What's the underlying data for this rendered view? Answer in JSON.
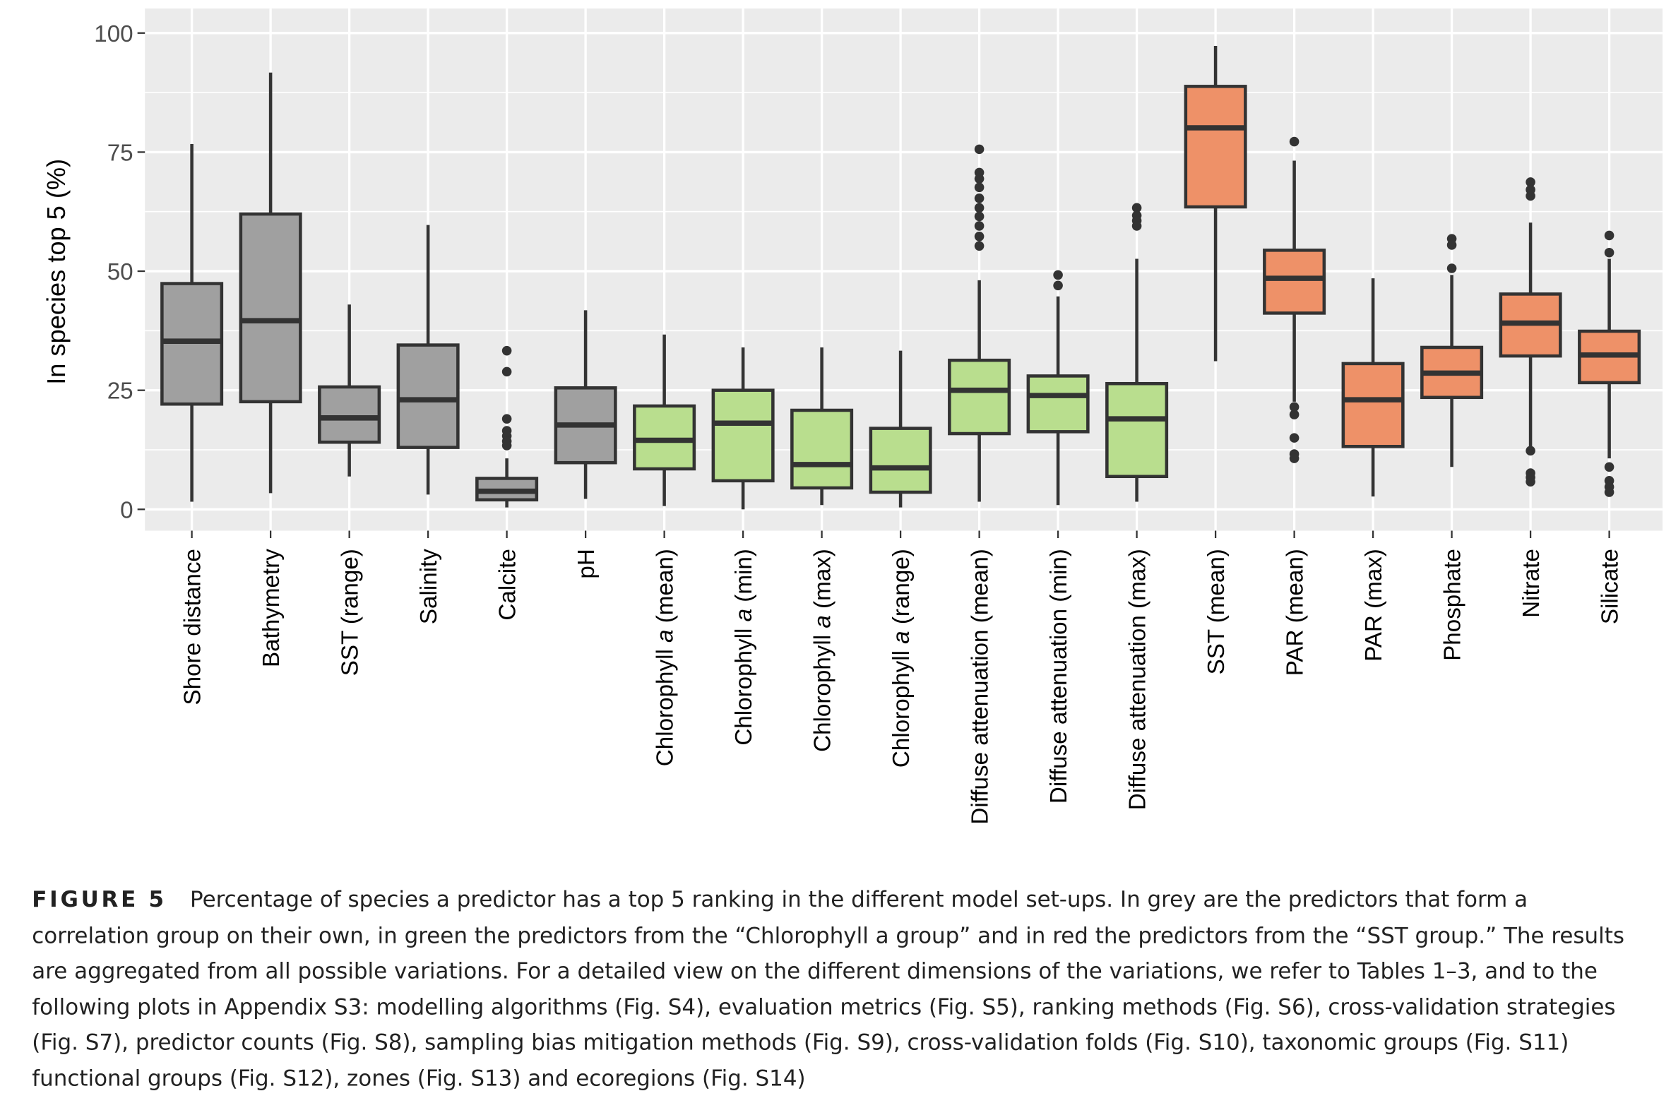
{
  "chart_data": {
    "type": "box",
    "ylabel": "In species top 5 (%)",
    "ylim": [
      -4,
      105
    ],
    "yticks": [
      0,
      25,
      50,
      75,
      100
    ],
    "grid": true,
    "colors": {
      "grey": "#a0a0a0",
      "green": "#b9de8e",
      "red": "#ee9168",
      "line": "#333333",
      "panel": "#ebebeb"
    },
    "categories": [
      {
        "label": [
          "Shore distance"
        ],
        "group": "grey",
        "whisker_low": 1.6,
        "q1": 22.1,
        "median": 35.3,
        "q3": 47.4,
        "whisker_high": 76.7,
        "outliers": []
      },
      {
        "label": [
          "Bathymetry"
        ],
        "group": "grey",
        "whisker_low": 3.4,
        "q1": 22.6,
        "median": 39.6,
        "q3": 62,
        "whisker_high": 91.7,
        "outliers": []
      },
      {
        "label": [
          "SST (range)"
        ],
        "group": "grey",
        "whisker_low": 6.9,
        "q1": 14.1,
        "median": 19.2,
        "q3": 25.7,
        "whisker_high": 43,
        "outliers": []
      },
      {
        "label": [
          "Salinity"
        ],
        "group": "grey",
        "whisker_low": 3.1,
        "q1": 13,
        "median": 23,
        "q3": 34.5,
        "whisker_high": 59.7,
        "outliers": []
      },
      {
        "label": [
          "Calcite"
        ],
        "group": "grey",
        "whisker_low": 0.4,
        "q1": 2,
        "median": 3.8,
        "q3": 6.5,
        "whisker_high": 10.7,
        "outliers": [
          33.3,
          28.9,
          19,
          16.5,
          15.4,
          14.3,
          13.4
        ]
      },
      {
        "label": [
          "pH"
        ],
        "group": "grey",
        "whisker_low": 2.2,
        "q1": 9.8,
        "median": 17.7,
        "q3": 25.5,
        "whisker_high": 41.8,
        "outliers": []
      },
      {
        "label": [
          "Chlorophyll ",
          "a",
          " (mean)"
        ],
        "group": "green",
        "whisker_low": 0.7,
        "q1": 8.5,
        "median": 14.5,
        "q3": 21.7,
        "whisker_high": 36.7,
        "outliers": []
      },
      {
        "label": [
          "Chlorophyll ",
          "a",
          " (min)"
        ],
        "group": "green",
        "whisker_low": 0,
        "q1": 6,
        "median": 18.1,
        "q3": 25,
        "whisker_high": 34,
        "outliers": []
      },
      {
        "label": [
          "Chlorophyll ",
          "a",
          " (max)"
        ],
        "group": "green",
        "whisker_low": 0.9,
        "q1": 4.5,
        "median": 9.4,
        "q3": 20.8,
        "whisker_high": 34,
        "outliers": []
      },
      {
        "label": [
          "Chlorophyll ",
          "a",
          " (range)"
        ],
        "group": "green",
        "whisker_low": 0.4,
        "q1": 3.6,
        "median": 8.7,
        "q3": 17,
        "whisker_high": 33.3,
        "outliers": []
      },
      {
        "label": [
          "Diffuse attenuation (mean)"
        ],
        "group": "green",
        "whisker_low": 1.6,
        "q1": 15.9,
        "median": 25,
        "q3": 31.3,
        "whisker_high": 48.1,
        "outliers": [
          75.6,
          70.7,
          69.4,
          67.6,
          65.3,
          63.3,
          61.5,
          59.5,
          57.3,
          55.3
        ]
      },
      {
        "label": [
          "Diffuse attenuation (min)"
        ],
        "group": "green",
        "whisker_low": 0.9,
        "q1": 16.3,
        "median": 23.9,
        "q3": 28,
        "whisker_high": 44.7,
        "outliers": [
          49.2,
          47
        ]
      },
      {
        "label": [
          "Diffuse attenuation (max)"
        ],
        "group": "green",
        "whisker_low": 1.6,
        "q1": 6.9,
        "median": 19,
        "q3": 26.4,
        "whisker_high": 52.6,
        "outliers": [
          63.3,
          61.7,
          60.6,
          59.5
        ]
      },
      {
        "label": [
          "SST (mean)"
        ],
        "group": "red",
        "whisker_low": 31.1,
        "q1": 63.5,
        "median": 80.1,
        "q3": 88.8,
        "whisker_high": 97.3,
        "outliers": []
      },
      {
        "label": [
          "PAR (mean)"
        ],
        "group": "red",
        "whisker_low": 22.6,
        "q1": 41.2,
        "median": 48.5,
        "q3": 54.4,
        "whisker_high": 73.2,
        "outliers": [
          77.2,
          21.5,
          19.9,
          15,
          11.6,
          10.7
        ]
      },
      {
        "label": [
          "PAR (max)"
        ],
        "group": "red",
        "whisker_low": 2.7,
        "q1": 13.2,
        "median": 23,
        "q3": 30.6,
        "whisker_high": 48.5,
        "outliers": []
      },
      {
        "label": [
          "Phosphate"
        ],
        "group": "red",
        "whisker_low": 8.9,
        "q1": 23.5,
        "median": 28.6,
        "q3": 34,
        "whisker_high": 49.2,
        "outliers": [
          56.8,
          55.5,
          50.6
        ]
      },
      {
        "label": [
          "Nitrate"
        ],
        "group": "red",
        "whisker_low": 12.8,
        "q1": 32.2,
        "median": 39.1,
        "q3": 45.2,
        "whisker_high": 60.2,
        "outliers": [
          68.7,
          67.1,
          65.8,
          12.3,
          7.6,
          6.7,
          5.8
        ]
      },
      {
        "label": [
          "Silicate"
        ],
        "group": "red",
        "whisker_low": 10.7,
        "q1": 26.6,
        "median": 32.4,
        "q3": 37.4,
        "whisker_high": 52.6,
        "outliers": [
          57.5,
          53.9,
          8.9,
          6,
          4.7,
          3.6
        ]
      }
    ]
  },
  "caption": {
    "figure_label": "FIGURE 5",
    "lines": [
      "Percentage of species a predictor has a top 5 ranking in the different model set-ups. In grey are the predictors that form a",
      "correlation group on their own, in green the predictors from the “Chlorophyll a group” and in red the predictors from the “SST group.” The results",
      "are aggregated from all possible variations. For a detailed view on the different dimensions of the variations, we refer to Tables 1–3, and to the",
      "following plots in Appendix S3: modelling algorithms (Fig. S4), evaluation metrics (Fig. S5), ranking methods (Fig. S6), cross-validation strategies",
      "(Fig. S7), predictor counts (Fig. S8), sampling bias mitigation methods (Fig. S9), cross-validation folds (Fig. S10), taxonomic groups (Fig. S11)",
      "functional groups (Fig. S12), zones (Fig. S13) and ecoregions (Fig. S14)"
    ]
  }
}
